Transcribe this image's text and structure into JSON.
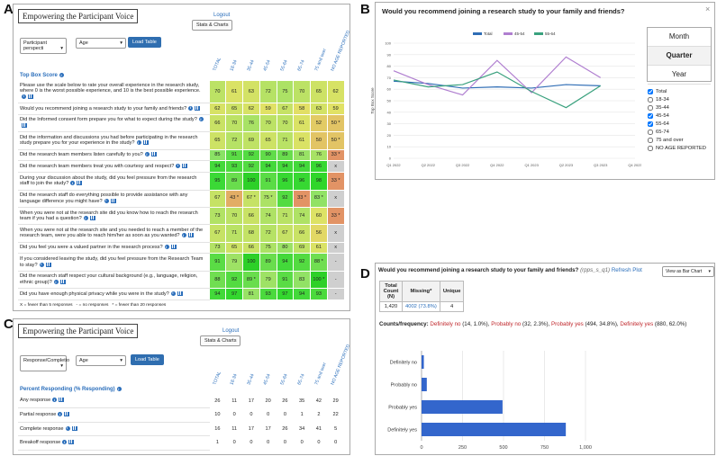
{
  "panel_labels": [
    "A",
    "B",
    "C",
    "D"
  ],
  "panel_a": {
    "header_title": "Empowering the Participant Voice",
    "logout": "Logout",
    "stats_button": "Stats & Charts",
    "select_1": "Participant perspecti",
    "select_2": "Age",
    "load_button": "Load Table",
    "columns": [
      "TOTAL",
      "18-34",
      "35-44",
      "45-54",
      "55-64",
      "65-74",
      "75 and over",
      "NO AGE REPORTED"
    ],
    "section": "Top Box Score",
    "rows": [
      {
        "question": "Please use the scale below to rate your overall experience in the research study, where 0 is the worst possible experience, and 10 is the best possible experience.",
        "cells": [
          "70",
          "61",
          "63",
          "72",
          "75",
          "70",
          "65",
          "62"
        ]
      },
      {
        "question": "Would you recommend joining a research study to your family and friends?",
        "cells": [
          "62",
          "65",
          "62",
          "59",
          "67",
          "58",
          "63",
          "59"
        ]
      },
      {
        "question": "Did the Informed consent form prepare you for what to expect during the study?",
        "cells": [
          "66",
          "70",
          "76",
          "70",
          "70",
          "61",
          "52",
          "50 *"
        ]
      },
      {
        "question": "Did the information and discussions you had before participating in the research study prepare you for your experience in the study?",
        "cells": [
          "65",
          "72",
          "69",
          "65",
          "71",
          "61",
          "50",
          "50 *"
        ]
      },
      {
        "question": "Did the research team members listen carefully to you?",
        "cells": [
          "85",
          "91",
          "92",
          "90",
          "89",
          "81",
          "76",
          "33 *"
        ]
      },
      {
        "question": "Did the research team members treat you with courtesy and respect?",
        "cells": [
          "94",
          "93",
          "92",
          "94",
          "94",
          "94",
          "96",
          "x"
        ]
      },
      {
        "question": "During your discussion about the study, did you feel pressure from the research staff to join the study?",
        "cells": [
          "95",
          "89",
          "100",
          "91",
          "96",
          "96",
          "98",
          "33 *"
        ]
      },
      {
        "question": "Did the research staff do everything possible to provide assistance with any language difference you might have?",
        "cells": [
          "67",
          "43 *",
          "67 *",
          "75 *",
          "92",
          "33 *",
          "83 *",
          "x"
        ]
      },
      {
        "question": "When you were not at the research site did you know how to reach the research team if you had a question?",
        "cells": [
          "73",
          "70",
          "66",
          "74",
          "71",
          "74",
          "60",
          "33 *"
        ]
      },
      {
        "question": "When you were not at the research site and you needed to reach a member of the research team, were you able to reach him/her as soon as you wanted?",
        "cells": [
          "67",
          "71",
          "68",
          "72",
          "67",
          "66",
          "56",
          "x"
        ]
      },
      {
        "question": "Did you feel you were a valued partner in the research process?",
        "cells": [
          "73",
          "65",
          "66",
          "75",
          "80",
          "69",
          "61",
          "x"
        ]
      },
      {
        "question": "If you considered leaving the study, did you feel pressure from the Research Team to stay?",
        "cells": [
          "91",
          "79",
          "100",
          "89",
          "94",
          "92",
          "88 *",
          "-"
        ]
      },
      {
        "question": "Did the research staff respect your cultural background (e.g., language, religion, ethnic group)?",
        "cells": [
          "88",
          "92",
          "89 *",
          "79",
          "91",
          "83",
          "100 *",
          "-"
        ]
      },
      {
        "question": "Did you have enough physical privacy while you were in the study?",
        "cells": [
          "94",
          "97",
          "81",
          "93",
          "97",
          "94",
          "93",
          "-"
        ]
      }
    ],
    "footnote": "X = fewer than 5 responses   - = no responses   * = fewer than 20 responses"
  },
  "panel_b": {
    "close": "×",
    "periods": [
      "Month",
      "Quarter",
      "Year"
    ],
    "selected_period": "Quarter",
    "filters": [
      "Total",
      "18-34",
      "35-44",
      "45-54",
      "55-64",
      "65-74",
      "75 and over",
      "NO AGE REPORTED"
    ],
    "checked": [
      true,
      false,
      false,
      true,
      true,
      false,
      false,
      false
    ]
  },
  "panel_c": {
    "header_title": "Empowering the Participant Voice",
    "logout": "Logout",
    "stats_button": "Stats & Charts",
    "select_1": "Response/Completio",
    "select_2": "Age",
    "load_button": "Load Table",
    "columns": [
      "TOTAL",
      "18-34",
      "35-44",
      "45-54",
      "55-64",
      "65-74",
      "75 and over",
      "NO AGE REPORTED"
    ],
    "section": "Percent Responding (% Responding)",
    "rows": [
      {
        "question": "Any response",
        "cells": [
          "26",
          "11",
          "17",
          "20",
          "26",
          "35",
          "42",
          "29"
        ]
      },
      {
        "question": "Partial response",
        "cells": [
          "10",
          "0",
          "0",
          "0",
          "0",
          "1",
          "2",
          "22"
        ]
      },
      {
        "question": "Complete response",
        "cells": [
          "16",
          "11",
          "17",
          "17",
          "26",
          "34",
          "41",
          "5"
        ]
      },
      {
        "question": "Breakoff response",
        "cells": [
          "1",
          "0",
          "0",
          "0",
          "0",
          "0",
          "0",
          "0"
        ]
      }
    ]
  },
  "panel_d": {
    "title": "Would you recommend joining a research study to your family and friends?",
    "variable": "(rpps_s_q1)",
    "refresh": "Refresh Plot",
    "view_select": "View as Bar Chart",
    "table_headers": [
      "Total Count (N)",
      "Missing*",
      "Unique"
    ],
    "table_values": [
      "1,420",
      "4002 (73.8%)",
      "4"
    ],
    "freq_label": "Counts/frequency:",
    "freq_items": [
      {
        "label": "Definitely no",
        "detail": "(14, 1.0%),"
      },
      {
        "label": "Probably no",
        "detail": "(32, 2.3%),"
      },
      {
        "label": "Probably yes",
        "detail": "(494, 34.8%),"
      },
      {
        "label": "Definitely yes",
        "detail": "(880, 62.0%)"
      }
    ]
  },
  "chart_data": [
    {
      "type": "line",
      "title": "Would you recommend joining a research study to your family and friends?",
      "y_label": "Top Box Score",
      "categories": [
        "Q1 2022",
        "Q2 2022",
        "Q3 2022",
        "Q4 2022",
        "Q1 2023",
        "Q2 2023",
        "Q3 2023",
        "Q4 2023"
      ],
      "series": [
        {
          "name": "Total",
          "color": "#2f6db5",
          "values": [
            67,
            65,
            61,
            62,
            61,
            64,
            63,
            null
          ]
        },
        {
          "name": "45-54",
          "color": "#b07fd0",
          "values": [
            76,
            64,
            55,
            85,
            57,
            88,
            70,
            null
          ]
        },
        {
          "name": "55-64",
          "color": "#3aa17e",
          "values": [
            68,
            62,
            64,
            75,
            58,
            44,
            63,
            null
          ]
        }
      ],
      "ylim": [
        0,
        100
      ],
      "yticks": [
        0,
        10,
        20,
        30,
        40,
        50,
        60,
        70,
        80,
        90,
        100
      ],
      "grid": true
    },
    {
      "type": "hbar",
      "categories": [
        "Definitely no",
        "Probably no",
        "Probably yes",
        "Definitely yes"
      ],
      "values": [
        14,
        32,
        494,
        880
      ],
      "color": "#3366cc",
      "xlim": [
        0,
        1000
      ],
      "xticks": [
        0,
        250,
        500,
        750,
        {
          "value": 1000,
          "label": "1,000"
        }
      ],
      "grid": true
    }
  ]
}
